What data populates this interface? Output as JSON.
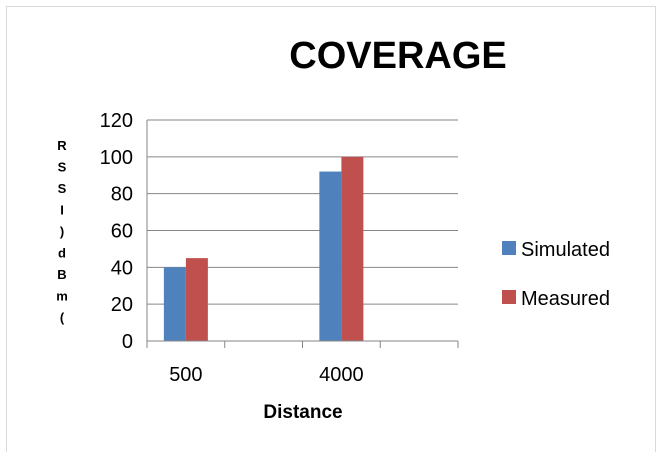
{
  "chart_data": {
    "type": "bar",
    "title": "COVERAGE",
    "xlabel": "Distance",
    "ylabel": "RSSI)dBm(",
    "categories": [
      "500",
      "4000"
    ],
    "series": [
      {
        "name": "Simulated",
        "values": [
          40,
          92
        ],
        "color": "#4f81bd"
      },
      {
        "name": "Measured",
        "values": [
          45,
          100
        ],
        "color": "#c0504d"
      }
    ],
    "ylim": [
      0,
      120
    ],
    "yticks": [
      "0",
      "20",
      "40",
      "60",
      "80",
      "100",
      "120"
    ],
    "grid": true,
    "legend": "right"
  }
}
